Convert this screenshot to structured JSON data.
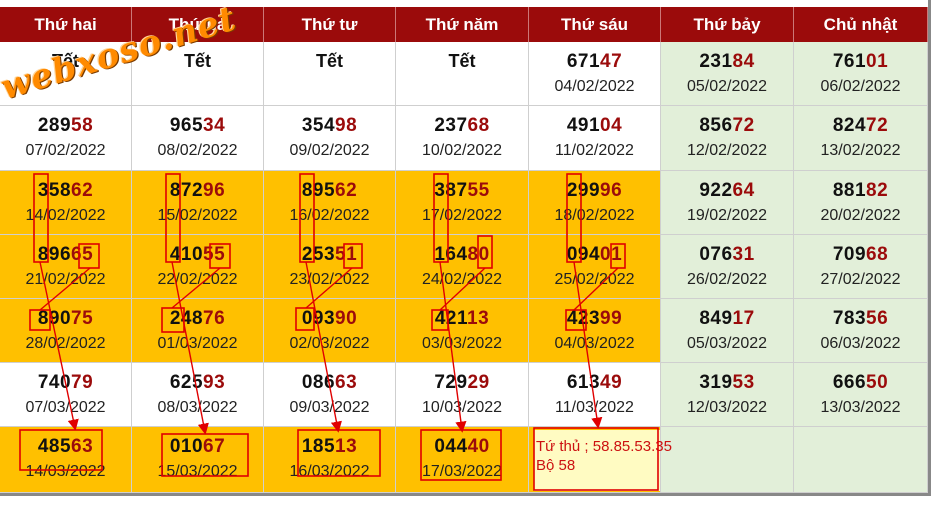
{
  "headers": [
    "Thứ hai",
    "Thứ ba",
    "Thứ tư",
    "Thứ năm",
    "Thứ sáu",
    "Thứ bảy",
    "Chủ nhật"
  ],
  "watermark": "webxoso.net",
  "rows": [
    [
      {
        "tet": "Tết"
      },
      {
        "tet": "Tết"
      },
      {
        "tet": "Tết"
      },
      {
        "tet": "Tết"
      },
      {
        "head": "671",
        "tail": "47",
        "date": "04/02/2022"
      },
      {
        "head": "231",
        "tail": "84",
        "date": "05/02/2022"
      },
      {
        "head": "761",
        "tail": "01",
        "date": "06/02/2022"
      }
    ],
    [
      {
        "head": "289",
        "tail": "58",
        "date": "07/02/2022"
      },
      {
        "head": "965",
        "tail": "34",
        "date": "08/02/2022"
      },
      {
        "head": "354",
        "tail": "98",
        "date": "09/02/2022"
      },
      {
        "head": "237",
        "tail": "68",
        "date": "10/02/2022"
      },
      {
        "head": "491",
        "tail": "04",
        "date": "11/02/2022"
      },
      {
        "head": "856",
        "tail": "72",
        "date": "12/02/2022"
      },
      {
        "head": "824",
        "tail": "72",
        "date": "13/02/2022"
      }
    ],
    [
      {
        "head": "358",
        "tail": "62",
        "date": "14/02/2022"
      },
      {
        "head": "872",
        "tail": "96",
        "date": "15/02/2022"
      },
      {
        "head": "895",
        "tail": "62",
        "date": "16/02/2022"
      },
      {
        "head": "387",
        "tail": "55",
        "date": "17/02/2022"
      },
      {
        "head": "299",
        "tail": "96",
        "date": "18/02/2022"
      },
      {
        "head": "922",
        "tail": "64",
        "date": "19/02/2022"
      },
      {
        "head": "881",
        "tail": "82",
        "date": "20/02/2022"
      }
    ],
    [
      {
        "head": "896",
        "tail": "65",
        "date": "21/02/2022"
      },
      {
        "head": "410",
        "tail": "55",
        "date": "22/02/2022"
      },
      {
        "head": "253",
        "tail": "51",
        "date": "23/02/2022"
      },
      {
        "head": "164",
        "tail": "80",
        "date": "24/02/2022"
      },
      {
        "head": "094",
        "tail": "01",
        "date": "25/02/2022"
      },
      {
        "head": "076",
        "tail": "31",
        "date": "26/02/2022"
      },
      {
        "head": "709",
        "tail": "68",
        "date": "27/02/2022"
      }
    ],
    [
      {
        "head": "890",
        "tail": "75",
        "date": "28/02/2022"
      },
      {
        "head": "248",
        "tail": "76",
        "date": "01/03/2022"
      },
      {
        "head": "093",
        "tail": "90",
        "date": "02/03/2022"
      },
      {
        "head": "421",
        "tail": "13",
        "date": "03/03/2022"
      },
      {
        "head": "423",
        "tail": "99",
        "date": "04/03/2022"
      },
      {
        "head": "849",
        "tail": "17",
        "date": "05/03/2022"
      },
      {
        "head": "783",
        "tail": "56",
        "date": "06/03/2022"
      }
    ],
    [
      {
        "head": "740",
        "tail": "79",
        "date": "07/03/2022"
      },
      {
        "head": "625",
        "tail": "93",
        "date": "08/03/2022"
      },
      {
        "head": "086",
        "tail": "63",
        "date": "09/03/2022"
      },
      {
        "head": "729",
        "tail": "29",
        "date": "10/03/2022"
      },
      {
        "head": "613",
        "tail": "49",
        "date": "11/03/2022"
      },
      {
        "head": "319",
        "tail": "53",
        "date": "12/03/2022"
      },
      {
        "head": "666",
        "tail": "50",
        "date": "13/03/2022"
      }
    ],
    [
      {
        "head": "485",
        "tail": "63",
        "date": "14/03/2022"
      },
      {
        "head": "010",
        "tail": "67",
        "date": "15/03/2022"
      },
      {
        "head": "185",
        "tail": "13",
        "date": "16/03/2022"
      },
      {
        "head": "044",
        "tail": "40",
        "date": "17/03/2022"
      },
      {},
      {},
      {}
    ]
  ],
  "note": {
    "line1": "Tứ thủ ; 58.85.53.35",
    "line2": "Bộ  58"
  },
  "colors": {
    "header_bg": "#9b0b0b",
    "highlight_row": "#ffc000",
    "weekend": "#e2efd9",
    "annotation_red": "#e00000",
    "watermark": "#ff8a00"
  }
}
